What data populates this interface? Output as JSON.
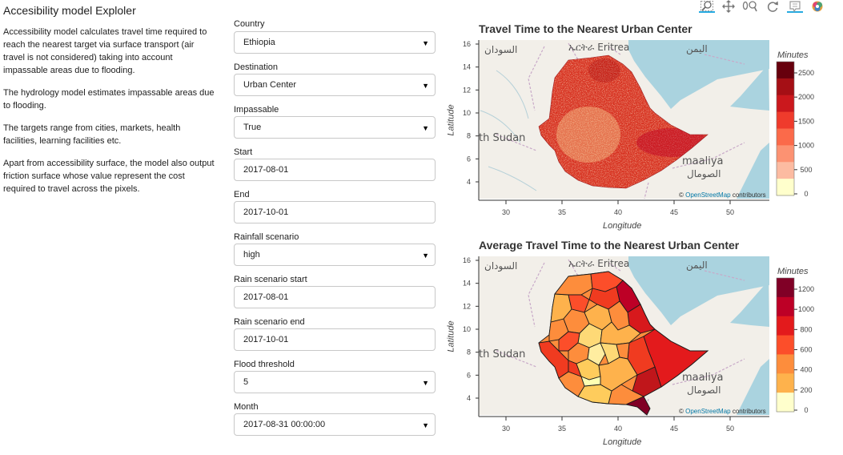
{
  "app": {
    "title": "Accesibility model Exploler"
  },
  "description": [
    "Accessibility model calculates travel time required to reach the nearest target via surface transport (air travel is not considered) taking into account impassable areas due to flooding.",
    "The hydrology model estimates impassable areas due to flooding.",
    "The targets range from cities, markets, health facilities, learning facilities etc.",
    "Apart from accessibility surface, the model also output friction surface whose value represent the cost required to travel across the pixels."
  ],
  "controls": [
    {
      "label": "Country",
      "value": "Ethiopia",
      "kind": "select"
    },
    {
      "label": "Destination",
      "value": "Urban Center",
      "kind": "select"
    },
    {
      "label": "Impassable",
      "value": "True",
      "kind": "select"
    },
    {
      "label": "Start",
      "value": "2017-08-01",
      "kind": "input"
    },
    {
      "label": "End",
      "value": "2017-10-01",
      "kind": "input"
    },
    {
      "label": "Rainfall scenario",
      "value": "high",
      "kind": "select"
    },
    {
      "label": "Rain scenario start",
      "value": "2017-08-01",
      "kind": "input"
    },
    {
      "label": "Rain scenario end",
      "value": "2017-10-01",
      "kind": "input"
    },
    {
      "label": "Flood threshold",
      "value": "5",
      "kind": "select"
    },
    {
      "label": "Month",
      "value": "2017-08-31 00:00:00",
      "kind": "select"
    }
  ],
  "toolbar": [
    "box-zoom-icon",
    "pan-icon",
    "wheel-zoom-icon",
    "reset-icon",
    "hover-icon",
    "bokeh-logo-icon"
  ],
  "map_labels": {
    "eritrea": "ኤርትራ Eritrea",
    "sudan": "السودان",
    "yemen": "اليمن",
    "south_sudan": "th Sudan",
    "somalia_latin": "maaliya",
    "somalia_arabic": "الصومال",
    "attribution_prefix": "© ",
    "attribution_link": "OpenStreetMap",
    "attribution_suffix": " contributors"
  },
  "plots": [
    {
      "title": "Travel Time to the Nearest Urban Center",
      "xlabel": "Longitude",
      "ylabel": "Latitude",
      "xticks": [
        "30",
        "35",
        "40",
        "45",
        "50"
      ],
      "yticks": [
        "4",
        "6",
        "8",
        "10",
        "12",
        "14",
        "16"
      ],
      "colorbar_title": "Minutes",
      "colorbar_ticks": [
        "2500",
        "2000",
        "1500",
        "1000",
        "500",
        "0"
      ],
      "colorbar_colors": [
        "#67000d",
        "#a50f15",
        "#cb181d",
        "#ef3b2c",
        "#fb6a4a",
        "#fc9272",
        "#fcbba1",
        "#ffffcc"
      ]
    },
    {
      "title": "Average Travel Time to the Nearest Urban Center",
      "xlabel": "Longitude",
      "ylabel": "Latitude",
      "xticks": [
        "30",
        "35",
        "40",
        "45",
        "50"
      ],
      "yticks": [
        "4",
        "6",
        "8",
        "10",
        "12",
        "14",
        "16"
      ],
      "colorbar_title": "Minutes",
      "colorbar_ticks": [
        "1200",
        "1000",
        "800",
        "600",
        "400",
        "200",
        "0"
      ],
      "colorbar_colors": [
        "#800026",
        "#bd0026",
        "#e31a1c",
        "#fc4e2a",
        "#fd8d3c",
        "#feb24c",
        "#ffffcc"
      ]
    }
  ],
  "colors": {
    "water": "#aad3df",
    "land": "#f2efe9",
    "border": "#b89bb8",
    "tool_active": "#26aae1"
  }
}
